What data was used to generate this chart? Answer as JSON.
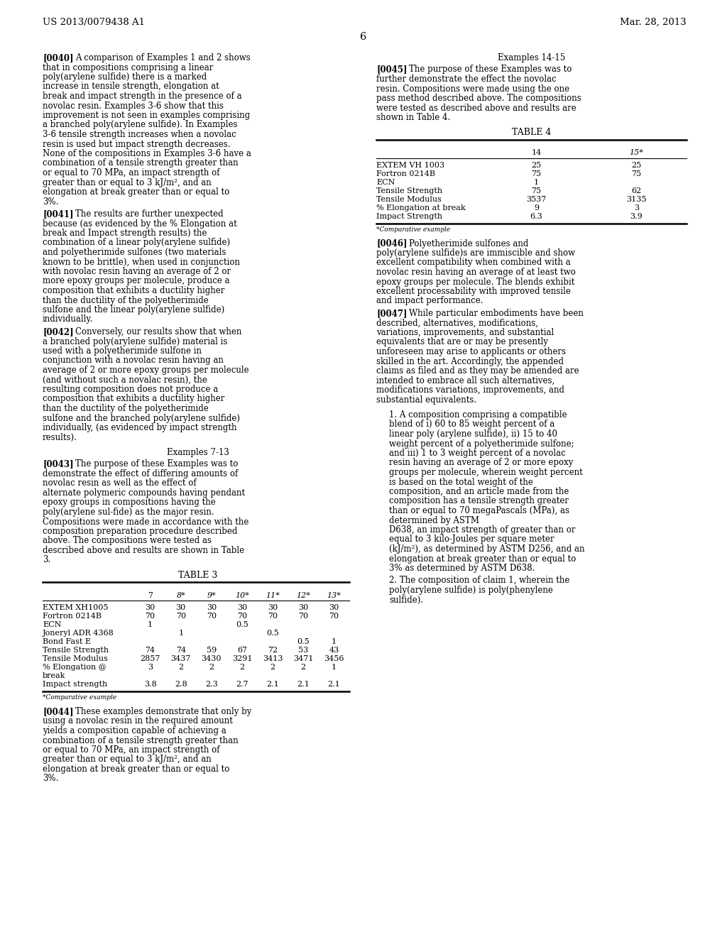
{
  "background_color": "#ffffff",
  "header_left": "US 2013/0079438 A1",
  "header_right": "Mar. 28, 2013",
  "page_number": "6",
  "para_0040": "[0040]  A comparison of Examples 1 and 2 shows that in compositions comprising a linear poly(arylene sulfide) there is a marked increase in tensile strength, elongation at break and impact strength in the presence of a novolac resin. Examples 3-6 show that this improvement is not seen in examples comprising a branched poly(arylene sulfide). In Examples 3-6 tensile strength increases when a novolac resin is used but impact strength decreases. None of the compositions in Examples 3-6 have a combination of a tensile strength greater than or equal to 70 MPa, an impact strength of greater than or equal to 3 kJ/m², and an elongation at break greater than or equal to 3%.",
  "para_0041": "[0041]  The results are further unexpected because (as evidenced by the % Elongation at break and Impact strength results) the combination of a linear poly(arylene sulfide) and polyetherimide sulfones (two materials known to be brittle), when used in conjunction with novolac resin having an average of 2 or more epoxy groups per molecule, produce a composition that exhibits a ductility higher than the ductility of the polyetherimide sulfone and the linear poly(arylene sulfide) individually.",
  "para_0042": "[0042]  Conversely, our results show that when a branched poly(arylene sulfide) material is used with a polyetherimide sulfone in conjunction with a novolac resin having an average of 2 or more epoxy groups per molecule (and without such a novalac resin), the resulting composition does not produce a composition that exhibits a ductility higher than the ductility of the polyetherimide sulfone and the branched poly(arylene sulfide) individually, (as evidenced by impact strength results).",
  "section_713": "Examples 7-13",
  "para_0043": "[0043]  The purpose of these Examples was to demonstrate the effect of differing amounts of novolac resin as well as the effect of alternate polymeric compounds having pendant epoxy groups in compositions having the poly(arylene sul-fide) as the major resin. Compositions were made in accordance with the composition preparation procedure described above. The compositions were tested as described above and results are shown in Table 3.",
  "table3_title": "TABLE 3",
  "table3_headers": [
    "",
    "7",
    "8*",
    "9*",
    "10*",
    "11*",
    "12*",
    "13*"
  ],
  "table3_rows": [
    [
      "EXTEM XH1005",
      "30",
      "30",
      "30",
      "30",
      "30",
      "30",
      "30"
    ],
    [
      "Fortron 0214B",
      "70",
      "70",
      "70",
      "70",
      "70",
      "70",
      "70"
    ],
    [
      "ECN",
      "1",
      "",
      "",
      "0.5",
      "",
      "",
      ""
    ],
    [
      "Joneryl ADR 4368",
      "",
      "1",
      "",
      "",
      "0.5",
      "",
      ""
    ],
    [
      "Bond Fast E",
      "",
      "",
      "",
      "",
      "",
      "0.5",
      "1"
    ],
    [
      "Tensile Strength",
      "74",
      "74",
      "59",
      "67",
      "72",
      "53",
      "43"
    ],
    [
      "Tensile Modulus",
      "2857",
      "3437",
      "3430",
      "3291",
      "3413",
      "3471",
      "3456"
    ],
    [
      "% Elongation @",
      "3",
      "2",
      "2",
      "2",
      "2",
      "2",
      "1"
    ],
    [
      "break",
      "",
      "",
      "",
      "",
      "",
      "",
      ""
    ],
    [
      "Impact strength",
      "3.8",
      "2.8",
      "2.3",
      "2.7",
      "2.1",
      "2.1",
      "2.1"
    ]
  ],
  "footnote": "*Comparative example",
  "para_0044": "[0044]  These examples demonstrate that only by using a novolac resin in the required amount yields a composition capable of achieving a combination of a tensile strength greater than or equal to 70 MPa, an impact strength of greater than or equal to 3 kJ/m², and an elongation at break greater than or equal to 3%.",
  "section_1415": "Examples 14-15",
  "para_0045": "[0045]  The purpose of these Examples was to further demonstrate the effect the novolac resin. Compositions were made using the one pass method described above. The compositions were tested as described above and results are shown in Table 4.",
  "table4_title": "TABLE 4",
  "table4_headers": [
    "",
    "14",
    "15*"
  ],
  "table4_rows": [
    [
      "EXTEM VH 1003",
      "25",
      "25"
    ],
    [
      "Fortron 0214B",
      "75",
      "75"
    ],
    [
      "ECN",
      "1",
      ""
    ],
    [
      "Tensile Strength",
      "75",
      "62"
    ],
    [
      "Tensile Modulus",
      "3537",
      "3135"
    ],
    [
      "% Elongation at break",
      "9",
      "3"
    ],
    [
      "Impact Strength",
      "6.3",
      "3.9"
    ]
  ],
  "para_0046": "[0046]  Polyetherimide sulfones and poly(arylene sulfide)s are immiscible and show excellent compatibility when combined with a novolac resin having an average of at least two epoxy groups per molecule. The blends exhibit excellent processability with improved tensile and impact performance.",
  "para_0047": "[0047]  While particular embodiments have been described, alternatives, modifications, variations, improvements, and substantial equivalents that are or may be presently unforeseen may arise to applicants or others skilled in the art. Accordingly, the appended claims as filed and as they may be amended are intended to embrace all such alternatives, modifications variations, improvements, and substantial equivalents.",
  "claim1": "1. A composition comprising a compatible blend of i) 60 to 85 weight percent of a linear poly (arylene sulfide), ii) 15 to 40 weight percent of a polyetherimide sulfone; and iii) 1 to 3 weight percent of a novolac resin having an average of 2 or more epoxy groups per molecule, wherein weight percent is based on the total weight of the composition, and an article made from the composition has a tensile strength greater than or equal to 70 megaPascals (MPa), as determined by ASTM",
  "right_col_cont": "D638, an impact strength of greater than or equal to 3 kilo-Joules per square meter (kJ/m²), as determined by ASTM D256, and an elongation at break greater than or equal to 3% as determined by ASTM D638.",
  "claim2": "2. The composition of claim 1, wherein the poly(arylene sulfide) is poly(phenylene sulfide)."
}
